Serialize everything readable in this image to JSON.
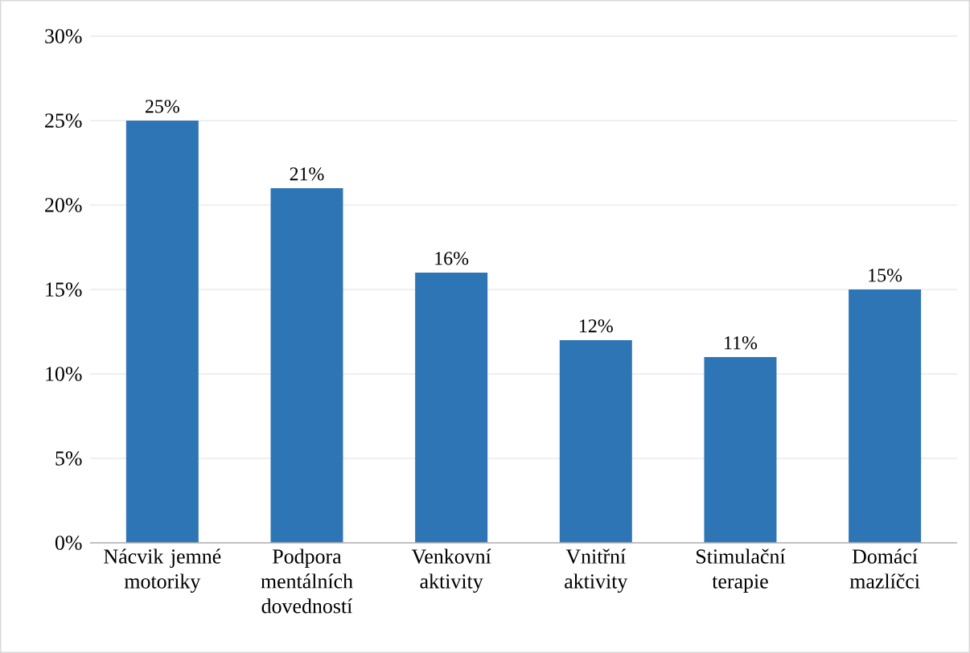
{
  "chart_data": {
    "type": "bar",
    "categories": [
      "Nácvik jemné motoriky",
      "Podpora mentálních dovedností",
      "Venkovní aktivity",
      "Vnitřní aktivity",
      "Stimulační terapie",
      "Domácí mazlíčci"
    ],
    "values": [
      25,
      21,
      16,
      12,
      11,
      15
    ],
    "value_labels": [
      "25%",
      "21%",
      "16%",
      "12%",
      "11%",
      "15%"
    ],
    "color": "#2e75b6",
    "ylim": [
      0,
      30
    ],
    "yticks": [
      {
        "value": 0,
        "label": "0%"
      },
      {
        "value": 5,
        "label": "5%"
      },
      {
        "value": 10,
        "label": "10%"
      },
      {
        "value": 15,
        "label": "15%"
      },
      {
        "value": 20,
        "label": "20%"
      },
      {
        "value": 25,
        "label": "25%"
      },
      {
        "value": 30,
        "label": "30%"
      }
    ],
    "grid": "y"
  }
}
